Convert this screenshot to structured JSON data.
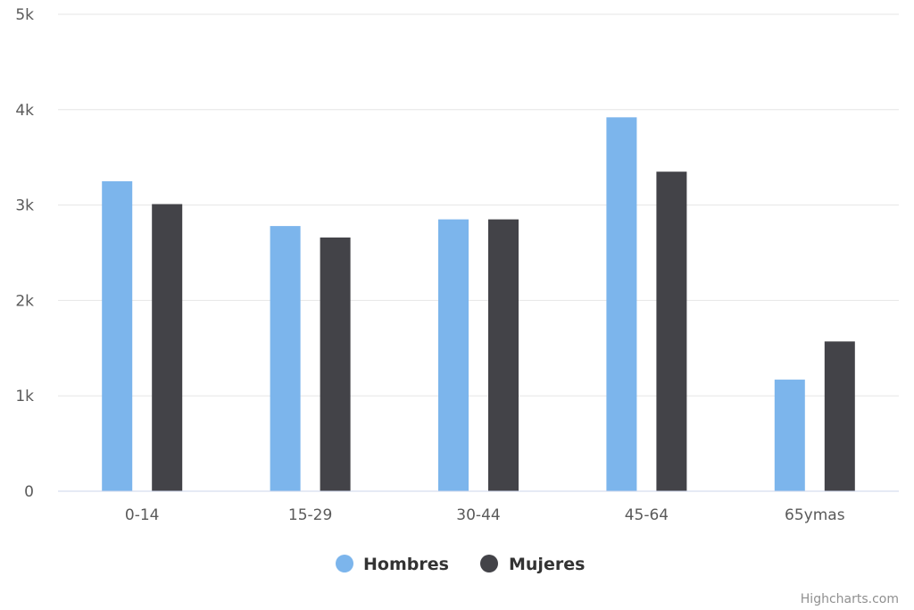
{
  "chart_data": {
    "type": "bar",
    "categories": [
      "0-14",
      "15-29",
      "30-44",
      "45-64",
      "65ymas"
    ],
    "series": [
      {
        "name": "Hombres",
        "color": "#7cb5ec",
        "values": [
          3250,
          2780,
          2850,
          3920,
          1170
        ]
      },
      {
        "name": "Mujeres",
        "color": "#434348",
        "values": [
          3010,
          2660,
          2850,
          3350,
          1570
        ]
      }
    ],
    "y_ticks": [
      {
        "value": 0,
        "label": "0"
      },
      {
        "value": 1000,
        "label": "1k"
      },
      {
        "value": 2000,
        "label": "2k"
      },
      {
        "value": 3000,
        "label": "3k"
      },
      {
        "value": 4000,
        "label": "4k"
      },
      {
        "value": 5000,
        "label": "5k"
      }
    ],
    "ylim": [
      0,
      5000
    ],
    "grid": true,
    "legend_position": "bottom-center"
  },
  "credits": "Highcharts.com"
}
